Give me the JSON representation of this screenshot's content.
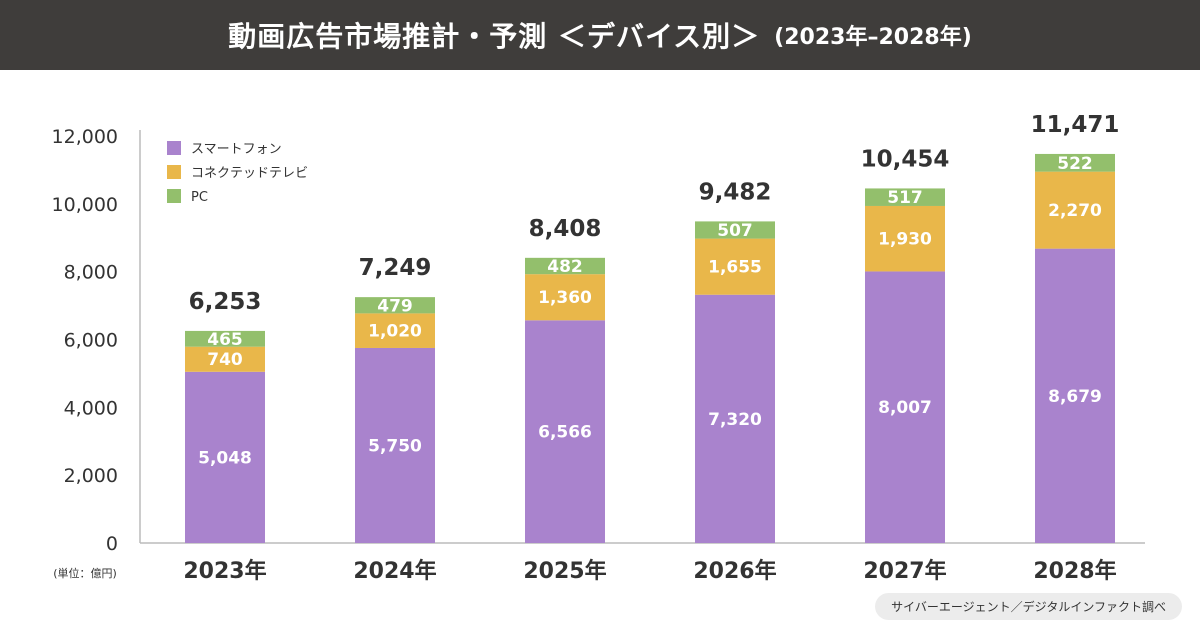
{
  "header": {
    "title": "動画広告市場推計・予測 ＜デバイス別＞",
    "period": "(2023年–2028年)"
  },
  "unit_label": "(単位：億円)",
  "source": "サイバーエージェント／デジタルインファクト調べ",
  "colors": {
    "smartphone": "#a983cd",
    "connected_tv": "#e9b74a",
    "pc": "#93bf6c",
    "header_bg": "#3f3d3b"
  },
  "chart_data": {
    "type": "bar",
    "stacked": true,
    "title": "動画広告市場推計・予測 ＜デバイス別＞ (2023年–2028年)",
    "xlabel": "",
    "ylabel": "億円",
    "ylim": [
      0,
      12000
    ],
    "yticks": [
      0,
      2000,
      4000,
      6000,
      8000,
      10000,
      12000
    ],
    "ytick_labels": [
      "0",
      "2,000",
      "4,000",
      "6,000",
      "8,000",
      "10,000",
      "12,000"
    ],
    "categories": [
      "2023年",
      "2024年",
      "2025年",
      "2026年",
      "2027年",
      "2028年"
    ],
    "series": [
      {
        "name": "スマートフォン",
        "color": "#a983cd",
        "values": [
          5048,
          5750,
          6566,
          7320,
          8007,
          8679
        ],
        "labels": [
          "5,048",
          "5,750",
          "6,566",
          "7,320",
          "8,007",
          "8,679"
        ]
      },
      {
        "name": "コネクテッドテレビ",
        "color": "#e9b74a",
        "values": [
          740,
          1020,
          1360,
          1655,
          1930,
          2270
        ],
        "labels": [
          "740",
          "1,020",
          "1,360",
          "1,655",
          "1,930",
          "2,270"
        ]
      },
      {
        "name": "PC",
        "color": "#93bf6c",
        "values": [
          465,
          479,
          482,
          507,
          517,
          522
        ],
        "labels": [
          "465",
          "479",
          "482",
          "507",
          "517",
          "522"
        ]
      }
    ],
    "totals": [
      6253,
      7249,
      8408,
      9482,
      10454,
      11471
    ],
    "total_labels": [
      "6,253",
      "7,249",
      "8,408",
      "9,482",
      "10,454",
      "11,471"
    ],
    "legend": "top-left",
    "grid": false
  }
}
